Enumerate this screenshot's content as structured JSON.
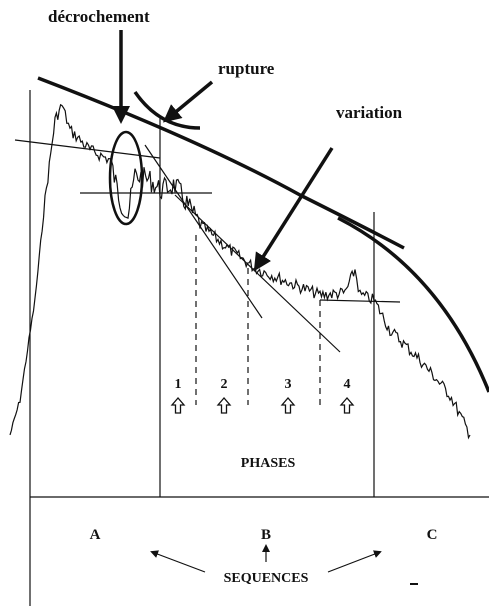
{
  "labels": {
    "decrochement": "décrochement",
    "rupture": "rupture",
    "variation": "variation"
  },
  "phases": {
    "numbers": [
      "1",
      "2",
      "3",
      "4"
    ],
    "title": "PHASES"
  },
  "sequences": {
    "letters": [
      "A",
      "B",
      "C"
    ],
    "title": "SEQUENCES"
  }
}
